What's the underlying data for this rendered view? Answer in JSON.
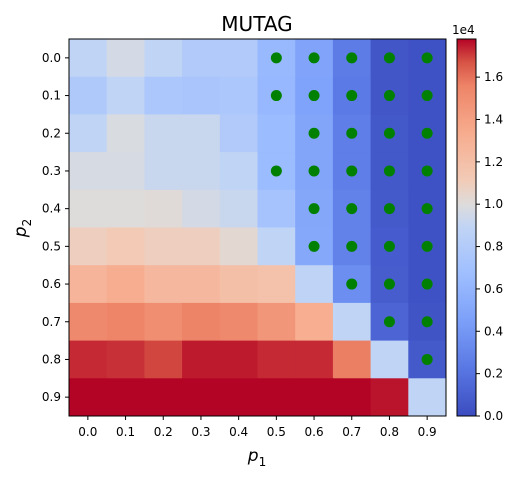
{
  "chart_data": {
    "type": "heatmap",
    "title": "MUTAG",
    "xlabel_main": "p",
    "xlabel_sub": "1",
    "ylabel_main": "p",
    "ylabel_sub": "2",
    "x_ticks": [
      "0.0",
      "0.1",
      "0.2",
      "0.3",
      "0.4",
      "0.5",
      "0.6",
      "0.7",
      "0.8",
      "0.9"
    ],
    "y_ticks": [
      "0.0",
      "0.1",
      "0.2",
      "0.3",
      "0.4",
      "0.5",
      "0.6",
      "0.7",
      "0.8",
      "0.9"
    ],
    "colorbar": {
      "colormap": "coolwarm",
      "vmin": 0,
      "vmax": 17800,
      "ticks": [
        "0.0",
        "0.2",
        "0.4",
        "0.6",
        "0.8",
        "1.0",
        "1.2",
        "1.4",
        "1.6"
      ],
      "tick_values": [
        0,
        2000,
        4000,
        6000,
        8000,
        10000,
        12000,
        14000,
        16000
      ],
      "offset_label": "1e4"
    },
    "values": [
      [
        8900,
        9600,
        8900,
        7900,
        7900,
        6300,
        4800,
        2500,
        500,
        300
      ],
      [
        7800,
        8900,
        7600,
        7400,
        7600,
        6200,
        4700,
        2400,
        500,
        300
      ],
      [
        8900,
        9800,
        9200,
        9200,
        7900,
        6500,
        4900,
        2600,
        600,
        300
      ],
      [
        9700,
        9700,
        9200,
        9200,
        8900,
        6500,
        4900,
        2600,
        600,
        300
      ],
      [
        10000,
        10000,
        10100,
        9600,
        9200,
        7200,
        5000,
        2800,
        700,
        300
      ],
      [
        10900,
        11200,
        10900,
        10900,
        10300,
        8900,
        5100,
        2800,
        800,
        300
      ],
      [
        12700,
        13300,
        12500,
        12500,
        12000,
        11800,
        8800,
        3500,
        900,
        300
      ],
      [
        15300,
        15500,
        15000,
        15600,
        15300,
        14600,
        13200,
        8900,
        1300,
        400
      ],
      [
        17300,
        17200,
        16900,
        17500,
        17500,
        17300,
        17300,
        15700,
        8900,
        700
      ],
      [
        17800,
        17800,
        17800,
        17800,
        17800,
        17800,
        17800,
        17800,
        17600,
        8900
      ]
    ],
    "markers": {
      "color": "#008000",
      "cells": [
        [
          0,
          5
        ],
        [
          0,
          6
        ],
        [
          0,
          7
        ],
        [
          0,
          8
        ],
        [
          0,
          9
        ],
        [
          1,
          5
        ],
        [
          1,
          6
        ],
        [
          1,
          7
        ],
        [
          1,
          8
        ],
        [
          1,
          9
        ],
        [
          2,
          6
        ],
        [
          2,
          7
        ],
        [
          2,
          8
        ],
        [
          2,
          9
        ],
        [
          3,
          5
        ],
        [
          3,
          6
        ],
        [
          3,
          7
        ],
        [
          3,
          8
        ],
        [
          3,
          9
        ],
        [
          4,
          6
        ],
        [
          4,
          7
        ],
        [
          4,
          8
        ],
        [
          4,
          9
        ],
        [
          5,
          6
        ],
        [
          5,
          7
        ],
        [
          5,
          8
        ],
        [
          5,
          9
        ],
        [
          6,
          7
        ],
        [
          6,
          8
        ],
        [
          6,
          9
        ],
        [
          7,
          8
        ],
        [
          7,
          9
        ],
        [
          8,
          9
        ]
      ]
    }
  }
}
